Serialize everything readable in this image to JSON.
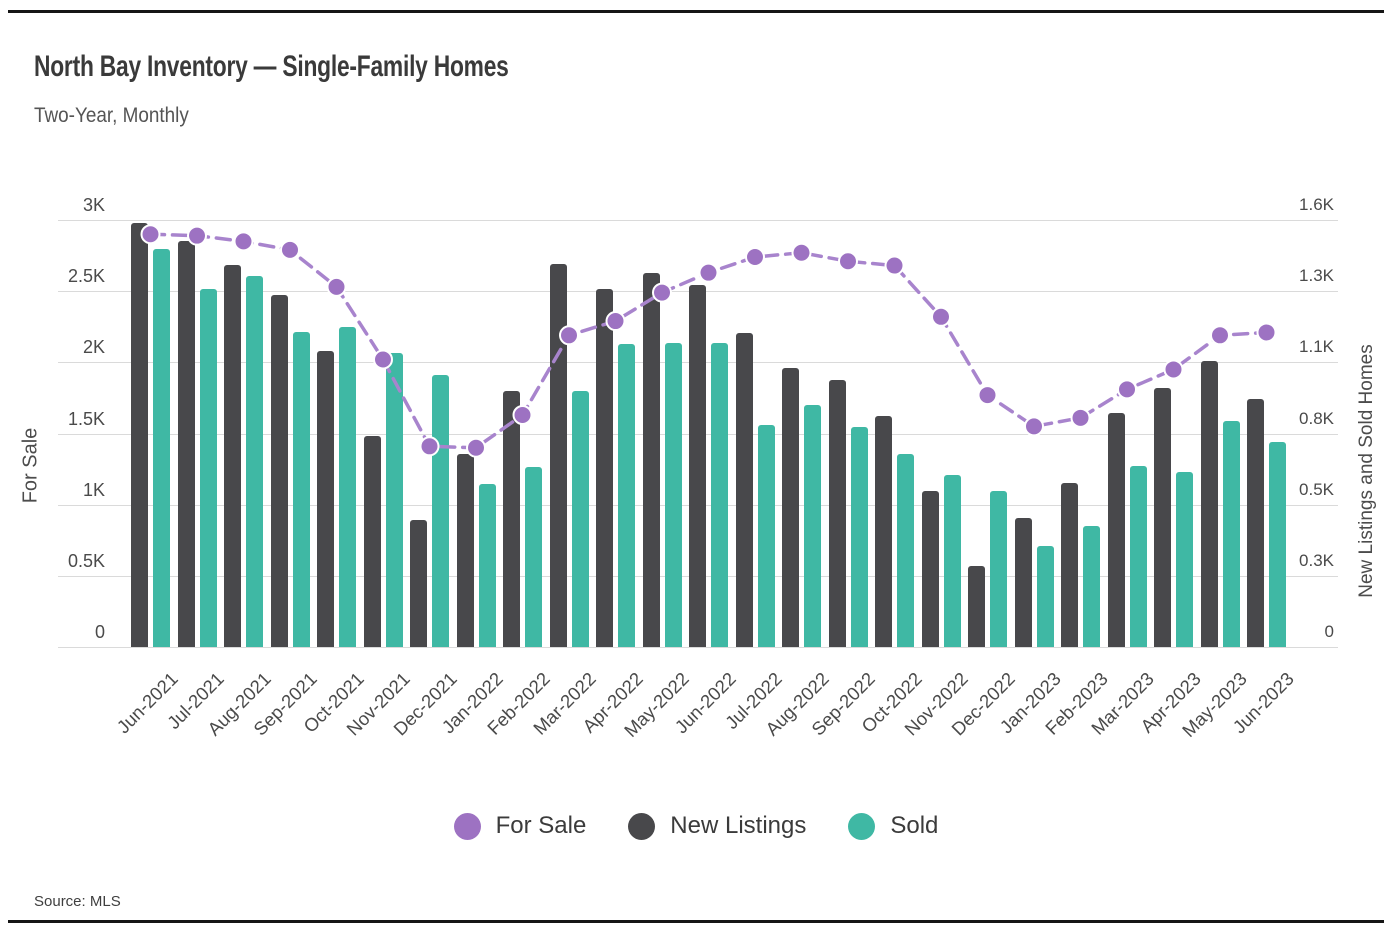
{
  "title": "North Bay Inventory — Single-Family Homes",
  "subtitle": "Two-Year, Monthly",
  "source": "Source: MLS",
  "colors": {
    "for_sale_line": "#a884cd",
    "for_sale_dot": "#9d72c2",
    "new_listings_bar": "#48484b",
    "sold_bar": "#3fb8a4",
    "gridline": "#dadada"
  },
  "chart_data": {
    "type": "combo-bar-line",
    "grid": true,
    "legend_position": "bottom",
    "categories": [
      "Jun-2021",
      "Jul-2021",
      "Aug-2021",
      "Sep-2021",
      "Oct-2021",
      "Nov-2021",
      "Dec-2021",
      "Jan-2022",
      "Feb-2022",
      "Mar-2022",
      "Apr-2022",
      "May-2022",
      "Jun-2022",
      "Jul-2022",
      "Aug-2022",
      "Sep-2022",
      "Oct-2022",
      "Nov-2022",
      "Dec-2022",
      "Jan-2023",
      "Feb-2023",
      "Mar-2023",
      "Apr-2023",
      "May-2023",
      "Jun-2023"
    ],
    "series": [
      {
        "name": "For Sale",
        "type": "line",
        "axis": "left",
        "color": "#a884cd",
        "dot_color": "#9d72c2",
        "values": [
          2900,
          2890,
          2850,
          2790,
          2530,
          2020,
          1410,
          1400,
          1630,
          2190,
          2290,
          2490,
          2630,
          2740,
          2770,
          2710,
          2680,
          2320,
          1770,
          1550,
          1610,
          1810,
          1950,
          2190,
          2210
        ]
      },
      {
        "name": "New Listings",
        "type": "bar",
        "axis": "right",
        "color": "#48484b",
        "values": [
          1590,
          1520,
          1430,
          1320,
          1110,
          790,
          475,
          725,
          960,
          1435,
          1340,
          1400,
          1355,
          1175,
          1045,
          1000,
          865,
          585,
          305,
          485,
          615,
          875,
          970,
          1070,
          930
        ]
      },
      {
        "name": "Sold",
        "type": "bar",
        "axis": "right",
        "color": "#3fb8a4",
        "values": [
          1490,
          1340,
          1390,
          1180,
          1200,
          1100,
          1020,
          610,
          675,
          960,
          1135,
          1140,
          1140,
          830,
          905,
          825,
          725,
          645,
          585,
          380,
          455,
          680,
          655,
          845,
          770
        ]
      }
    ],
    "left_axis": {
      "title": "For Sale",
      "max": 3000,
      "ticks": [
        {
          "v": 0,
          "label": "0"
        },
        {
          "v": 500,
          "label": "0.5K"
        },
        {
          "v": 1000,
          "label": "1K"
        },
        {
          "v": 1500,
          "label": "1.5K"
        },
        {
          "v": 2000,
          "label": "2K"
        },
        {
          "v": 2500,
          "label": "2.5K"
        },
        {
          "v": 3000,
          "label": "3K"
        }
      ]
    },
    "right_axis": {
      "title": "New Listings and Sold Homes",
      "max": 1600,
      "ticks": [
        {
          "v": 0,
          "label": "0"
        },
        {
          "v": 267,
          "label": "0.3K"
        },
        {
          "v": 533,
          "label": "0.5K"
        },
        {
          "v": 800,
          "label": "0.8K"
        },
        {
          "v": 1067,
          "label": "1.1K"
        },
        {
          "v": 1333,
          "label": "1.3K"
        },
        {
          "v": 1600,
          "label": "1.6K"
        }
      ]
    }
  }
}
